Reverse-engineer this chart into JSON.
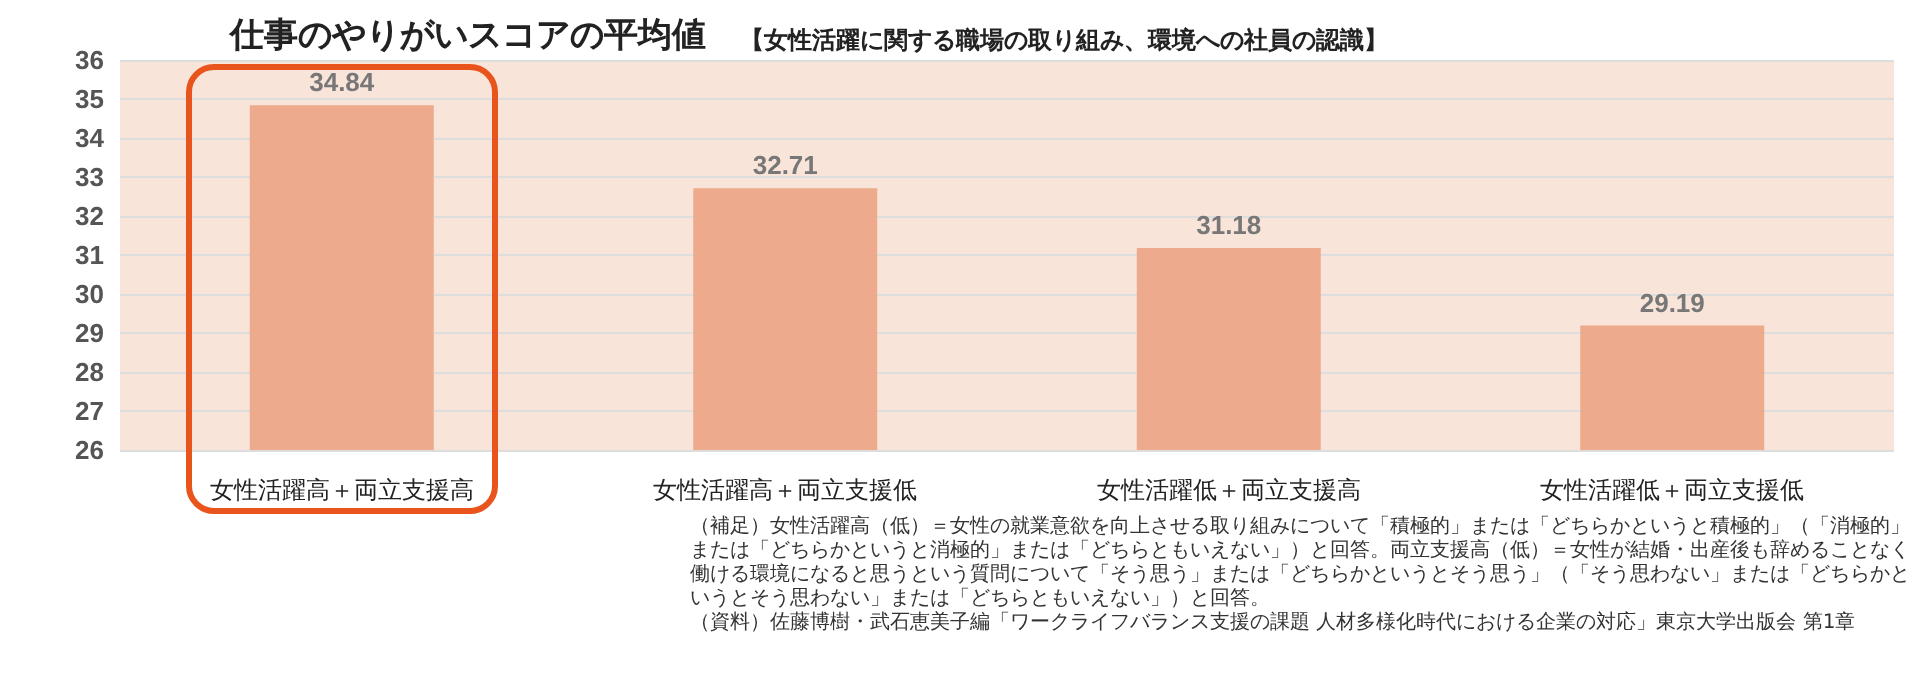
{
  "chart_data": {
    "type": "bar",
    "title": "仕事のやりがいスコアの平均値",
    "subtitle": "【女性活躍に関する職場の取り組み、環境への社員の認識】",
    "categories": [
      "女性活躍高＋両立支援高",
      "女性活躍高＋両立支援低",
      "女性活躍低＋両立支援高",
      "女性活躍低＋両立支援低"
    ],
    "values": [
      34.84,
      32.71,
      31.18,
      29.19
    ],
    "color": "#eeaa8c",
    "data_labels": true,
    "ylim": [
      26,
      36
    ],
    "yticks": [
      26,
      27,
      28,
      29,
      30,
      31,
      32,
      33,
      34,
      35,
      36
    ],
    "grid": "y",
    "annotations": [
      "（補足）女性活躍高（低）＝女性の就業意欲を向上させる取り組みについて「積極的」または「どちらかというと積極的」（「消極的」または「どちらかというと消極的」または「どちらともいえない」）と回答。両立支援高（低）＝女性が結婚・出産後も辞めることなく働ける環境になると思うという質問について「そう思う」または「どちらかというとそう思う」（「そう思わない」または「どちらかというとそう思わない」または「どちらともいえない」）と回答。",
      "（資料）佐藤博樹・武石恵美子編「ワークライフバランス支援の課題 人材多様化時代における企業の対応」東京大学出版会 第1章"
    ]
  }
}
